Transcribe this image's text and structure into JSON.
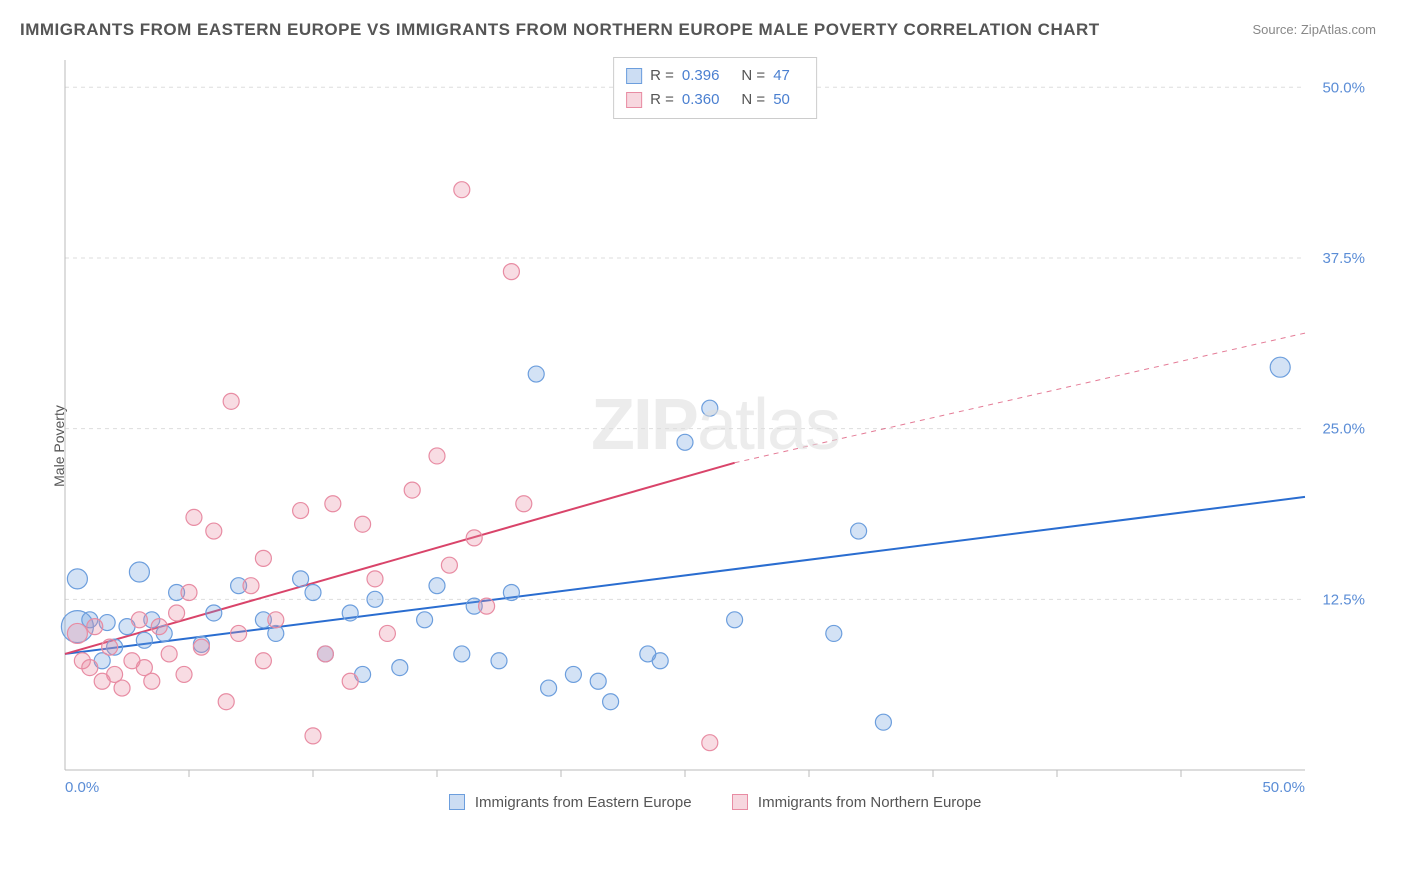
{
  "title": "IMMIGRANTS FROM EASTERN EUROPE VS IMMIGRANTS FROM NORTHERN EUROPE MALE POVERTY CORRELATION CHART",
  "source": "Source: ZipAtlas.com",
  "ylabel": "Male Poverty",
  "watermark_bold": "ZIP",
  "watermark_light": "atlas",
  "chart": {
    "type": "scatter",
    "xlim": [
      0,
      50
    ],
    "ylim": [
      0,
      52
    ],
    "xtick_min": "0.0%",
    "xtick_max": "50.0%",
    "yticks": [
      12.5,
      25.0,
      37.5,
      50.0
    ],
    "ytick_labels": [
      "12.5%",
      "25.0%",
      "37.5%",
      "50.0%"
    ],
    "xticks_minor": [
      5,
      10,
      15,
      20,
      25,
      30,
      35,
      40,
      45
    ],
    "background_color": "#ffffff",
    "grid_color": "#dddddd",
    "axis_color": "#bbbbbb",
    "series": [
      {
        "name": "Immigrants from Eastern Europe",
        "color_fill": "rgba(108,158,221,0.30)",
        "color_stroke": "#6c9edd",
        "marker_r": 8,
        "R": "0.396",
        "N": "47",
        "regression": {
          "x1": 0,
          "y1": 8.5,
          "x2": 50,
          "y2": 20.0,
          "dash_from_x": 50,
          "color": "#2a6dd0",
          "width": 2
        },
        "points": [
          [
            0.5,
            10.5,
            16
          ],
          [
            0.5,
            14.0,
            10
          ],
          [
            1.0,
            11.0,
            8
          ],
          [
            1.5,
            8.0,
            8
          ],
          [
            1.7,
            10.8,
            8
          ],
          [
            2.0,
            9.0,
            8
          ],
          [
            2.5,
            10.5,
            8
          ],
          [
            3.0,
            14.5,
            10
          ],
          [
            3.2,
            9.5,
            8
          ],
          [
            3.5,
            11.0,
            8
          ],
          [
            4.0,
            10.0,
            8
          ],
          [
            4.5,
            13.0,
            8
          ],
          [
            5.5,
            9.2,
            8
          ],
          [
            6.0,
            11.5,
            8
          ],
          [
            7.0,
            13.5,
            8
          ],
          [
            8.0,
            11.0,
            8
          ],
          [
            8.5,
            10.0,
            8
          ],
          [
            9.5,
            14.0,
            8
          ],
          [
            10.0,
            13.0,
            8
          ],
          [
            10.5,
            8.5,
            8
          ],
          [
            11.5,
            11.5,
            8
          ],
          [
            12.0,
            7.0,
            8
          ],
          [
            12.5,
            12.5,
            8
          ],
          [
            13.5,
            7.5,
            8
          ],
          [
            14.5,
            11.0,
            8
          ],
          [
            15.0,
            13.5,
            8
          ],
          [
            16.0,
            8.5,
            8
          ],
          [
            16.5,
            12.0,
            8
          ],
          [
            17.5,
            8.0,
            8
          ],
          [
            18.0,
            13.0,
            8
          ],
          [
            19.0,
            29.0,
            8
          ],
          [
            19.5,
            6.0,
            8
          ],
          [
            20.5,
            7.0,
            8
          ],
          [
            21.5,
            6.5,
            8
          ],
          [
            22.0,
            5.0,
            8
          ],
          [
            23.5,
            8.5,
            8
          ],
          [
            24.0,
            8.0,
            8
          ],
          [
            25.0,
            24.0,
            8
          ],
          [
            26.0,
            26.5,
            8
          ],
          [
            27.0,
            11.0,
            8
          ],
          [
            31.0,
            10.0,
            8
          ],
          [
            32.0,
            17.5,
            8
          ],
          [
            33.0,
            3.5,
            8
          ],
          [
            49.0,
            29.5,
            10
          ]
        ]
      },
      {
        "name": "Immigrants from Northern Europe",
        "color_fill": "rgba(232,140,163,0.30)",
        "color_stroke": "#e88ca3",
        "marker_r": 8,
        "R": "0.360",
        "N": "50",
        "regression": {
          "x1": 0,
          "y1": 8.5,
          "x2": 27,
          "y2": 22.5,
          "dash_from_x": 27,
          "dash_to_x": 50,
          "dash_to_y": 32.0,
          "color": "#d9446a",
          "width": 2
        },
        "points": [
          [
            0.5,
            10.0,
            10
          ],
          [
            0.7,
            8.0,
            8
          ],
          [
            1.0,
            7.5,
            8
          ],
          [
            1.2,
            10.5,
            8
          ],
          [
            1.5,
            6.5,
            8
          ],
          [
            1.8,
            9.0,
            8
          ],
          [
            2.0,
            7.0,
            8
          ],
          [
            2.3,
            6.0,
            8
          ],
          [
            2.7,
            8.0,
            8
          ],
          [
            3.0,
            11.0,
            8
          ],
          [
            3.2,
            7.5,
            8
          ],
          [
            3.5,
            6.5,
            8
          ],
          [
            3.8,
            10.5,
            8
          ],
          [
            4.2,
            8.5,
            8
          ],
          [
            4.5,
            11.5,
            8
          ],
          [
            4.8,
            7.0,
            8
          ],
          [
            5.0,
            13.0,
            8
          ],
          [
            5.2,
            18.5,
            8
          ],
          [
            5.5,
            9.0,
            8
          ],
          [
            6.0,
            17.5,
            8
          ],
          [
            6.5,
            5.0,
            8
          ],
          [
            6.7,
            27.0,
            8
          ],
          [
            7.0,
            10.0,
            8
          ],
          [
            7.5,
            13.5,
            8
          ],
          [
            8.0,
            8.0,
            8
          ],
          [
            8.0,
            15.5,
            8
          ],
          [
            8.5,
            11.0,
            8
          ],
          [
            9.5,
            19.0,
            8
          ],
          [
            10.0,
            2.5,
            8
          ],
          [
            10.5,
            8.5,
            8
          ],
          [
            10.8,
            19.5,
            8
          ],
          [
            11.5,
            6.5,
            8
          ],
          [
            12.0,
            18.0,
            8
          ],
          [
            12.5,
            14.0,
            8
          ],
          [
            13.0,
            10.0,
            8
          ],
          [
            14.0,
            20.5,
            8
          ],
          [
            15.0,
            23.0,
            8
          ],
          [
            15.5,
            15.0,
            8
          ],
          [
            16.0,
            42.5,
            8
          ],
          [
            16.5,
            17.0,
            8
          ],
          [
            17.0,
            12.0,
            8
          ],
          [
            18.0,
            36.5,
            8
          ],
          [
            18.5,
            19.5,
            8
          ],
          [
            26.0,
            2.0,
            8
          ]
        ]
      }
    ]
  },
  "legend_top": {
    "r_label": "R =",
    "n_label": "N ="
  },
  "legend_bottom": {
    "series1": "Immigrants from Eastern Europe",
    "series2": "Immigrants from Northern Europe"
  }
}
